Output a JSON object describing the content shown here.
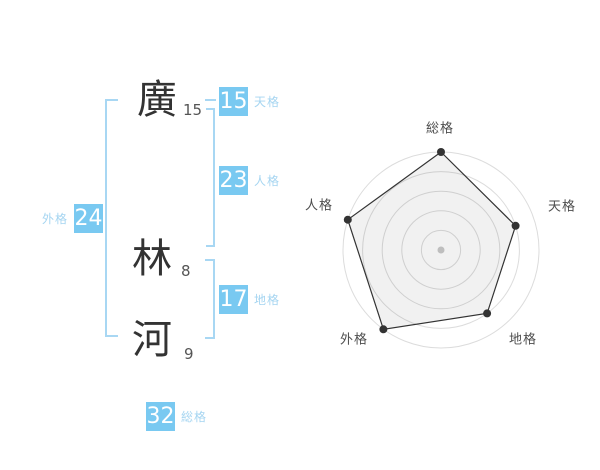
{
  "colors": {
    "badge_bg": "#79c9f1",
    "badge_text": "#ffffff",
    "label_blue": "#a5d5f1",
    "bracket_blue": "#a8d7f3",
    "kanji_color": "#333333",
    "stroke_count_color": "#555555",
    "chart_line": "#333333",
    "chart_ring": "#dcdcdc",
    "chart_fill": "rgba(0,0,0,0.055)",
    "chart_center_dot": "#c9c9c9",
    "chart_label": "#4d4d4d"
  },
  "name": {
    "characters": [
      {
        "char": "廣",
        "strokes": "15"
      },
      {
        "char": "林",
        "strokes": "8"
      },
      {
        "char": "河",
        "strokes": "9"
      }
    ]
  },
  "fortune": {
    "tenkaku": {
      "value": "15",
      "label": "天格"
    },
    "jinkaku": {
      "value": "23",
      "label": "人格"
    },
    "chikaku": {
      "value": "17",
      "label": "地格"
    },
    "gaikaku": {
      "value": "24",
      "label": "外格"
    },
    "soukaku": {
      "value": "32",
      "label": "総格"
    }
  },
  "chart_data": {
    "type": "radar",
    "axes": [
      "総格",
      "天格",
      "地格",
      "外格",
      "人格"
    ],
    "values": [
      5,
      4,
      4,
      5,
      5
    ],
    "max": 5,
    "rings": 5,
    "grid": "circular",
    "legend": "none"
  }
}
